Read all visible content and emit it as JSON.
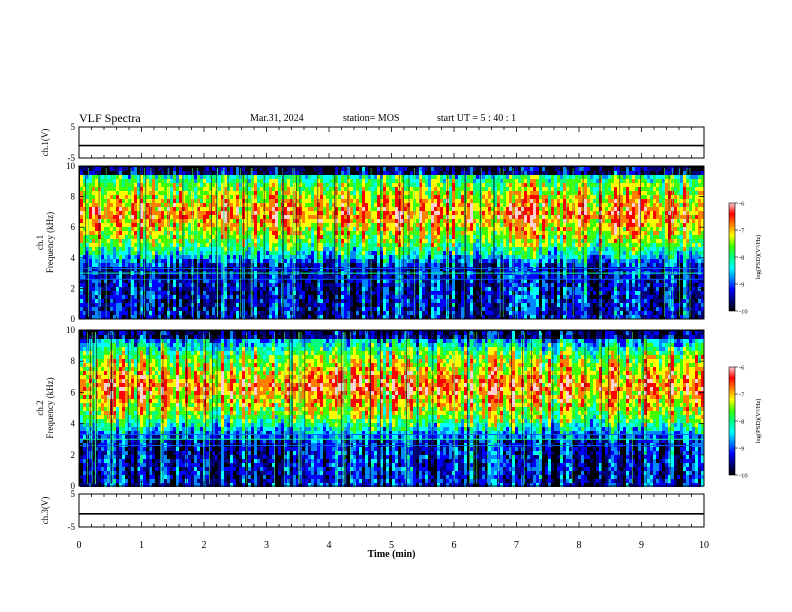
{
  "header": {
    "title": "VLF Spectra",
    "date": "Mar.31, 2024",
    "station": "station= MOS",
    "start": "start  UT =   5 : 40 : 1"
  },
  "chart_data": [
    {
      "type": "line",
      "name": "ch1-waveform",
      "ylabel": "ch.1(V)",
      "ylim": [
        -5,
        5
      ],
      "yticks": [
        "5",
        "-5"
      ],
      "xlim": [
        0,
        10
      ],
      "x": [
        0,
        10
      ],
      "y": [
        -1,
        -1
      ]
    },
    {
      "type": "heatmap",
      "name": "ch1-spectrogram",
      "ylabel": "ch.1\nFrequency (kHz)",
      "ylim": [
        0,
        10
      ],
      "yticks": [
        "0",
        "2",
        "4",
        "6",
        "8",
        "10"
      ],
      "xlim": [
        0,
        10
      ],
      "intense_band_khz": [
        5,
        9
      ],
      "colorbar": {
        "label": "log(PSD)(V²/Hz)",
        "range": [
          -10,
          -6
        ],
        "ticks": [
          "-6",
          "-7",
          "-8",
          "-9",
          "-10"
        ]
      }
    },
    {
      "type": "heatmap",
      "name": "ch2-spectrogram",
      "ylabel": "ch.2\nFrequency (kHz)",
      "ylim": [
        0,
        10
      ],
      "yticks": [
        "0",
        "2",
        "4",
        "6",
        "8",
        "10"
      ],
      "xlim": [
        0,
        10
      ],
      "intense_band_khz": [
        4.5,
        8.5
      ],
      "colorbar": {
        "label": "log(PSD)(V²/Hz)",
        "range": [
          -10,
          -6
        ],
        "ticks": [
          "-6",
          "-7",
          "-8",
          "-9",
          "-10"
        ]
      }
    },
    {
      "type": "line",
      "name": "ch3-waveform",
      "ylabel": "ch.3(V)",
      "ylim": [
        -5,
        5
      ],
      "yticks": [
        "5",
        "-5"
      ],
      "xlim": [
        0,
        10
      ],
      "xlabel": "Time  (min)",
      "xticks": [
        "0",
        "1",
        "2",
        "3",
        "4",
        "5",
        "6",
        "7",
        "8",
        "9",
        "10"
      ],
      "x": [
        0,
        10
      ],
      "y": [
        -1,
        -1
      ]
    }
  ],
  "colors": {
    "colormap": [
      "#000000",
      "#00007a",
      "#0000ff",
      "#0088ff",
      "#00ffff",
      "#00ff80",
      "#40ff00",
      "#ffff00",
      "#ff8000",
      "#ff0000",
      "#ffd0d0"
    ]
  }
}
